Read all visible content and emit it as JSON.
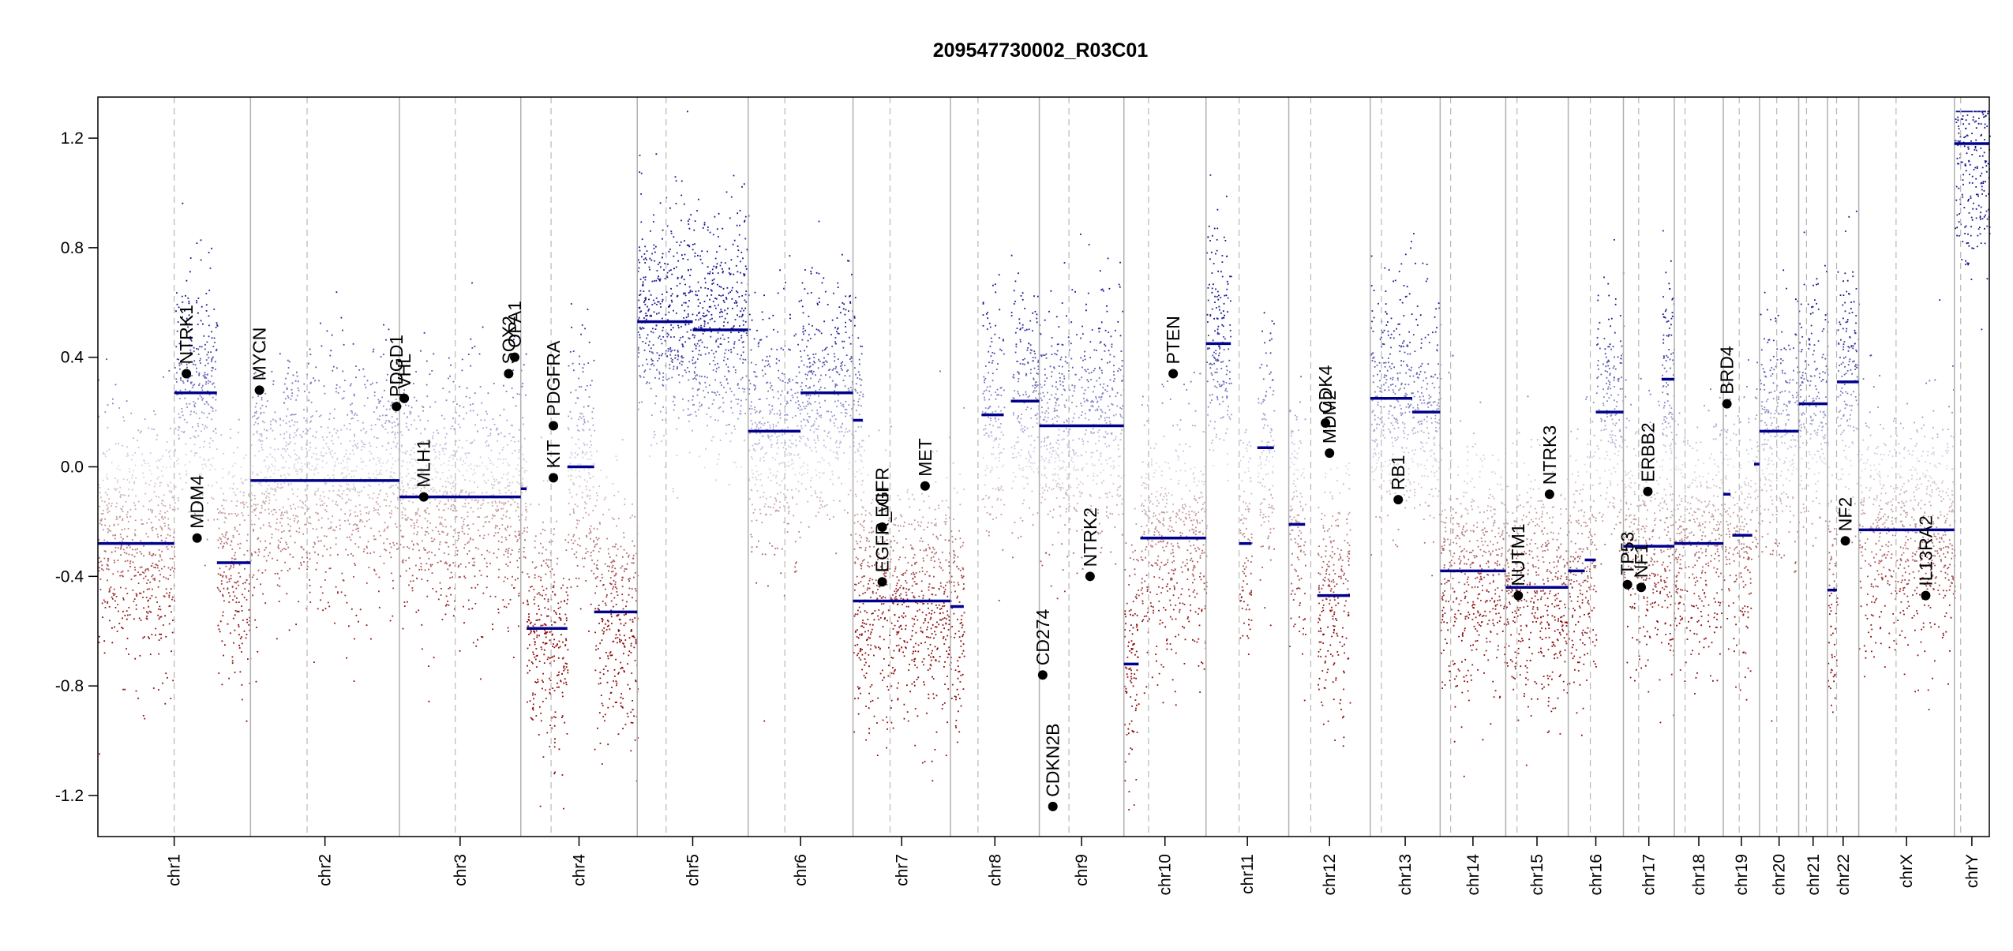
{
  "chart_data": {
    "type": "scatter",
    "title": "209547730002_R03C01",
    "xlabel": "",
    "ylabel": "",
    "ylim": [
      -1.35,
      1.35
    ],
    "y_ticks": [
      -1.2,
      -0.8,
      -0.4,
      0.0,
      0.4,
      0.8,
      1.2
    ],
    "y_tick_labels": [
      "-1.2",
      "-0.8",
      "-0.4",
      "0.0",
      "0.4",
      "0.8",
      "1.2"
    ],
    "chromosomes": [
      {
        "label": "chr1",
        "length": 249,
        "centromere": 0.5
      },
      {
        "label": "chr2",
        "length": 243,
        "centromere": 0.38
      },
      {
        "label": "chr3",
        "length": 198,
        "centromere": 0.46
      },
      {
        "label": "chr4",
        "length": 190,
        "centromere": 0.26
      },
      {
        "label": "chr5",
        "length": 181,
        "centromere": 0.26
      },
      {
        "label": "chr6",
        "length": 171,
        "centromere": 0.35
      },
      {
        "label": "chr7",
        "length": 159,
        "centromere": 0.38
      },
      {
        "label": "chr8",
        "length": 145,
        "centromere": 0.31
      },
      {
        "label": "chr9",
        "length": 138,
        "centromere": 0.35
      },
      {
        "label": "chr10",
        "length": 134,
        "centromere": 0.3
      },
      {
        "label": "chr11",
        "length": 135,
        "centromere": 0.4
      },
      {
        "label": "chr12",
        "length": 133,
        "centromere": 0.27
      },
      {
        "label": "chr13",
        "length": 114,
        "centromere": 0.16
      },
      {
        "label": "chr14",
        "length": 107,
        "centromere": 0.16
      },
      {
        "label": "chr15",
        "length": 102,
        "centromere": 0.18
      },
      {
        "label": "chr16",
        "length": 90,
        "centromere": 0.4
      },
      {
        "label": "chr17",
        "length": 83,
        "centromere": 0.3
      },
      {
        "label": "chr18",
        "length": 80,
        "centromere": 0.22
      },
      {
        "label": "chr19",
        "length": 59,
        "centromere": 0.44
      },
      {
        "label": "chr20",
        "length": 64,
        "centromere": 0.44
      },
      {
        "label": "chr21",
        "length": 47,
        "centromere": 0.27
      },
      {
        "label": "chr22",
        "length": 51,
        "centromere": 0.29
      },
      {
        "label": "chrX",
        "length": 156,
        "centromere": 0.39
      },
      {
        "label": "chrY",
        "length": 57,
        "centromere": 0.18
      }
    ],
    "segments": [
      {
        "chr": "chr1",
        "start": 0.0,
        "end": 0.5,
        "value": -0.28
      },
      {
        "chr": "chr1",
        "start": 0.5,
        "end": 0.78,
        "value": 0.27
      },
      {
        "chr": "chr1",
        "start": 0.78,
        "end": 1.0,
        "value": -0.35
      },
      {
        "chr": "chr2",
        "start": 0.0,
        "end": 1.0,
        "value": -0.05
      },
      {
        "chr": "chr3",
        "start": 0.0,
        "end": 1.0,
        "value": -0.11
      },
      {
        "chr": "chr4",
        "start": 0.0,
        "end": 0.05,
        "value": -0.08
      },
      {
        "chr": "chr4",
        "start": 0.05,
        "end": 0.4,
        "value": -0.59
      },
      {
        "chr": "chr4",
        "start": 0.4,
        "end": 0.63,
        "value": 0.0
      },
      {
        "chr": "chr4",
        "start": 0.63,
        "end": 1.0,
        "value": -0.53
      },
      {
        "chr": "chr5",
        "start": 0.0,
        "end": 0.5,
        "value": 0.53
      },
      {
        "chr": "chr5",
        "start": 0.5,
        "end": 1.0,
        "value": 0.5
      },
      {
        "chr": "chr6",
        "start": 0.0,
        "end": 0.5,
        "value": 0.13
      },
      {
        "chr": "chr6",
        "start": 0.5,
        "end": 1.0,
        "value": 0.27
      },
      {
        "chr": "chr7",
        "start": 0.0,
        "end": 0.3,
        "value": -0.49
      },
      {
        "chr": "chr7",
        "start": 0.3,
        "end": 1.0,
        "value": -0.49
      },
      {
        "chr": "chr7",
        "start": 0.0,
        "end": 0.1,
        "value": 0.17
      },
      {
        "chr": "chr8",
        "start": 0.0,
        "end": 0.15,
        "value": -0.51
      },
      {
        "chr": "chr8",
        "start": 0.35,
        "end": 0.6,
        "value": 0.19
      },
      {
        "chr": "chr8",
        "start": 0.68,
        "end": 1.0,
        "value": 0.24
      },
      {
        "chr": "chr9",
        "start": 0.0,
        "end": 1.0,
        "value": 0.15
      },
      {
        "chr": "chr10",
        "start": 0.0,
        "end": 0.18,
        "value": -0.72
      },
      {
        "chr": "chr10",
        "start": 0.2,
        "end": 1.0,
        "value": -0.26
      },
      {
        "chr": "chr11",
        "start": 0.0,
        "end": 0.3,
        "value": 0.45
      },
      {
        "chr": "chr11",
        "start": 0.4,
        "end": 0.55,
        "value": -0.28
      },
      {
        "chr": "chr11",
        "start": 0.62,
        "end": 0.82,
        "value": 0.07
      },
      {
        "chr": "chr12",
        "start": 0.0,
        "end": 0.2,
        "value": -0.21
      },
      {
        "chr": "chr12",
        "start": 0.35,
        "end": 0.75,
        "value": -0.47
      },
      {
        "chr": "chr13",
        "start": 0.0,
        "end": 0.6,
        "value": 0.25
      },
      {
        "chr": "chr13",
        "start": 0.6,
        "end": 1.0,
        "value": 0.2
      },
      {
        "chr": "chr14",
        "start": 0.0,
        "end": 1.0,
        "value": -0.38
      },
      {
        "chr": "chr15",
        "start": 0.0,
        "end": 1.0,
        "value": -0.44
      },
      {
        "chr": "chr16",
        "start": 0.0,
        "end": 0.3,
        "value": -0.38
      },
      {
        "chr": "chr16",
        "start": 0.3,
        "end": 0.5,
        "value": -0.34
      },
      {
        "chr": "chr16",
        "start": 0.5,
        "end": 1.0,
        "value": 0.2
      },
      {
        "chr": "chr17",
        "start": 0.0,
        "end": 1.0,
        "value": -0.29
      },
      {
        "chr": "chr17",
        "start": 0.75,
        "end": 1.0,
        "value": 0.32
      },
      {
        "chr": "chr18",
        "start": 0.0,
        "end": 1.0,
        "value": -0.28
      },
      {
        "chr": "chr19",
        "start": 0.0,
        "end": 0.2,
        "value": -0.1
      },
      {
        "chr": "chr19",
        "start": 0.25,
        "end": 0.8,
        "value": -0.25
      },
      {
        "chr": "chr19",
        "start": 0.85,
        "end": 1.0,
        "value": 0.01
      },
      {
        "chr": "chr20",
        "start": 0.0,
        "end": 1.0,
        "value": 0.13
      },
      {
        "chr": "chr21",
        "start": 0.0,
        "end": 0.5,
        "value": 0.23
      },
      {
        "chr": "chr21",
        "start": 0.5,
        "end": 1.0,
        "value": 0.23
      },
      {
        "chr": "chr22",
        "start": 0.0,
        "end": 0.3,
        "value": -0.45
      },
      {
        "chr": "chr22",
        "start": 0.3,
        "end": 1.0,
        "value": 0.31
      },
      {
        "chr": "chrX",
        "start": 0.0,
        "end": 1.0,
        "value": -0.23
      },
      {
        "chr": "chrY",
        "start": 0.0,
        "end": 1.0,
        "value": 1.18
      }
    ],
    "genes": [
      {
        "name": "NTRK1",
        "chr": "chr1",
        "pos": 0.58,
        "value": 0.34
      },
      {
        "name": "MDM4",
        "chr": "chr1",
        "pos": 0.65,
        "value": -0.26
      },
      {
        "name": "MYCN",
        "chr": "chr2",
        "pos": 0.06,
        "value": 0.28
      },
      {
        "name": "PDGD1",
        "chr": "chr2",
        "pos": 0.98,
        "value": 0.22
      },
      {
        "name": "VHL",
        "chr": "chr3",
        "pos": 0.04,
        "value": 0.25
      },
      {
        "name": "MLH1",
        "chr": "chr3",
        "pos": 0.2,
        "value": -0.11
      },
      {
        "name": "SOX2",
        "chr": "chr3",
        "pos": 0.9,
        "value": 0.34
      },
      {
        "name": "OPA1",
        "chr": "chr3",
        "pos": 0.95,
        "value": 0.4
      },
      {
        "name": "PDGFRA",
        "chr": "chr4",
        "pos": 0.28,
        "value": 0.15
      },
      {
        "name": "KIT",
        "chr": "chr4",
        "pos": 0.28,
        "value": -0.04
      },
      {
        "name": "EGFR",
        "chr": "chr7",
        "pos": 0.3,
        "value": -0.22
      },
      {
        "name": "EGFR_vIII",
        "chr": "chr7",
        "pos": 0.3,
        "value": -0.42
      },
      {
        "name": "MET",
        "chr": "chr7",
        "pos": 0.74,
        "value": -0.07
      },
      {
        "name": "CD274",
        "chr": "chr9",
        "pos": 0.04,
        "value": -0.76
      },
      {
        "name": "CDKN2B",
        "chr": "chr9",
        "pos": 0.16,
        "value": -1.24
      },
      {
        "name": "NTRK2",
        "chr": "chr9",
        "pos": 0.6,
        "value": -0.4
      },
      {
        "name": "PTEN",
        "chr": "chr10",
        "pos": 0.6,
        "value": 0.34
      },
      {
        "name": "CDK4",
        "chr": "chr12",
        "pos": 0.45,
        "value": 0.16
      },
      {
        "name": "MDM2",
        "chr": "chr12",
        "pos": 0.5,
        "value": 0.05
      },
      {
        "name": "RB1",
        "chr": "chr13",
        "pos": 0.4,
        "value": -0.12
      },
      {
        "name": "NUTM1",
        "chr": "chr15",
        "pos": 0.2,
        "value": -0.47
      },
      {
        "name": "NTRK3",
        "chr": "chr15",
        "pos": 0.7,
        "value": -0.1
      },
      {
        "name": "TP53",
        "chr": "chr17",
        "pos": 0.08,
        "value": -0.43
      },
      {
        "name": "NF1",
        "chr": "chr17",
        "pos": 0.35,
        "value": -0.44
      },
      {
        "name": "ERBB2",
        "chr": "chr17",
        "pos": 0.48,
        "value": -0.09
      },
      {
        "name": "BRD4",
        "chr": "chr19",
        "pos": 0.1,
        "value": 0.23
      },
      {
        "name": "NF2",
        "chr": "chr22",
        "pos": 0.57,
        "value": -0.27
      },
      {
        "name": "IL13RA2",
        "chr": "chrX",
        "pos": 0.7,
        "value": -0.47
      }
    ]
  }
}
